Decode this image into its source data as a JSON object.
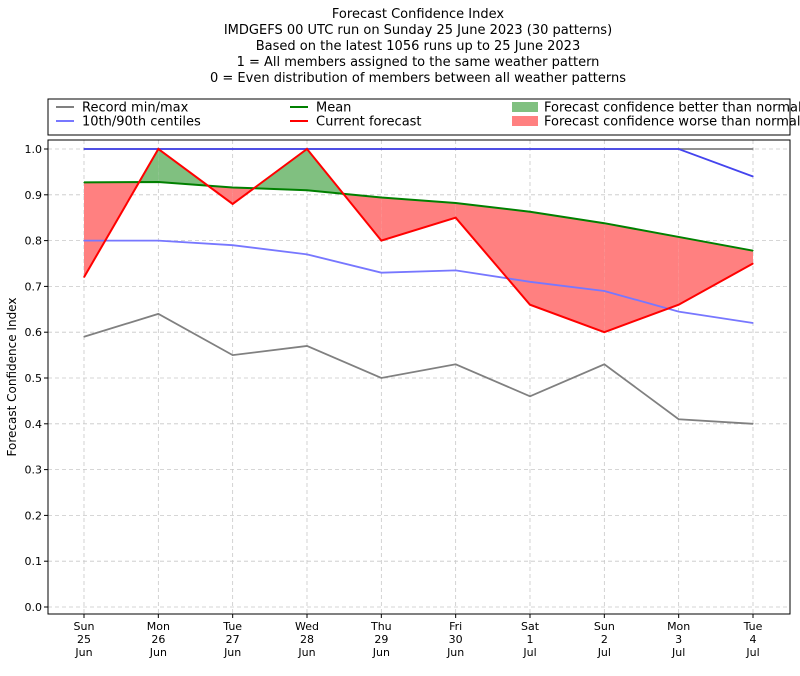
{
  "chart_data": {
    "type": "line",
    "title_lines": [
      "Forecast Confidence Index",
      "IMDGEFS 00 UTC run on Sunday 25 June 2023 (30 patterns)",
      "Based on the latest 1056 runs up to 25 June 2023",
      "1 = All members assigned to the same weather pattern",
      "0 = Even distribution of members between all weather patterns"
    ],
    "ylabel": "Forecast Confidence Index",
    "ylim": [
      0,
      1.0
    ],
    "yticks": [
      "0.0",
      "0.1",
      "0.2",
      "0.3",
      "0.4",
      "0.5",
      "0.6",
      "0.7",
      "0.8",
      "0.9",
      "1.0"
    ],
    "categories": [
      [
        "Sun",
        "25",
        "Jun"
      ],
      [
        "Mon",
        "26",
        "Jun"
      ],
      [
        "Tue",
        "27",
        "Jun"
      ],
      [
        "Wed",
        "28",
        "Jun"
      ],
      [
        "Thu",
        "29",
        "Jun"
      ],
      [
        "Fri",
        "30",
        "Jun"
      ],
      [
        "Sat",
        "1",
        "Jul"
      ],
      [
        "Sun",
        "2",
        "Jul"
      ],
      [
        "Mon",
        "3",
        "Jul"
      ],
      [
        "Tue",
        "4",
        "Jul"
      ]
    ],
    "grid": true,
    "legend": [
      {
        "label": "Record min/max",
        "kind": "line",
        "color": "#808080"
      },
      {
        "label": "Mean",
        "kind": "line",
        "color": "#008000"
      },
      {
        "label": "Forecast confidence better than normal",
        "kind": "patch",
        "color": "#80c080"
      },
      {
        "label": "10th/90th centiles",
        "kind": "line",
        "color": "#7777ff"
      },
      {
        "label": "Current forecast",
        "kind": "line",
        "color": "#ff0000"
      },
      {
        "label": "Forecast confidence worse than normal",
        "kind": "patch",
        "color": "#ff8080"
      }
    ],
    "series": [
      {
        "name": "Record min",
        "color": "#808080",
        "values": [
          0.59,
          0.64,
          0.55,
          0.57,
          0.5,
          0.53,
          0.46,
          0.53,
          0.41,
          0.4
        ]
      },
      {
        "name": "Record max",
        "color": "#808080",
        "values": [
          1.0,
          1.0,
          1.0,
          1.0,
          1.0,
          1.0,
          1.0,
          1.0,
          1.0,
          1.0
        ]
      },
      {
        "name": "10th centile",
        "color": "#7777ff",
        "values": [
          0.8,
          0.8,
          0.79,
          0.77,
          0.73,
          0.735,
          0.71,
          0.69,
          0.645,
          0.62
        ]
      },
      {
        "name": "90th centile",
        "color": "#4444ee",
        "values": [
          1.0,
          1.0,
          1.0,
          1.0,
          1.0,
          1.0,
          1.0,
          1.0,
          1.0,
          0.94
        ]
      },
      {
        "name": "Mean",
        "color": "#008000",
        "values": [
          0.927,
          0.928,
          0.916,
          0.91,
          0.894,
          0.882,
          0.863,
          0.838,
          0.808,
          0.778
        ]
      },
      {
        "name": "Current forecast",
        "color": "#ff0000",
        "values": [
          0.72,
          1.0,
          0.88,
          1.0,
          0.8,
          0.85,
          0.66,
          0.6,
          0.66,
          0.75
        ]
      }
    ],
    "colors": {
      "better": "#80c080",
      "worse": "#ff8080",
      "grid": "#c8c8c8"
    }
  }
}
